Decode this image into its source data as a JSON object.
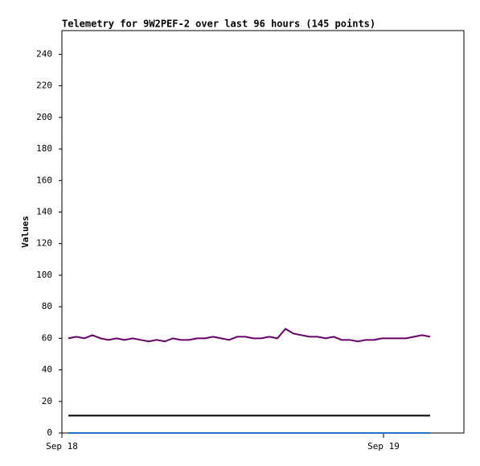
{
  "chart_data": {
    "type": "line",
    "title": "Telemetry for 9W2PEF-2 over last 96 hours (145 points)",
    "y_label": "Values",
    "x": [
      0.02,
      0.045,
      0.07,
      0.095,
      0.12,
      0.145,
      0.17,
      0.195,
      0.22,
      0.245,
      0.27,
      0.295,
      0.32,
      0.345,
      0.37,
      0.395,
      0.42,
      0.445,
      0.47,
      0.495,
      0.52,
      0.545,
      0.57,
      0.595,
      0.62,
      0.645,
      0.67,
      0.695,
      0.72,
      0.745,
      0.77,
      0.795,
      0.82,
      0.845,
      0.87,
      0.895,
      0.92,
      0.945,
      0.97,
      0.995,
      1.02,
      1.045,
      1.07,
      1.095,
      1.12,
      1.145
    ],
    "series": [
      {
        "color": "#660066",
        "values": [
          60,
          61,
          60,
          62,
          60,
          59,
          60,
          59,
          60,
          59,
          58,
          59,
          58,
          60,
          59,
          59,
          60,
          60,
          61,
          60,
          59,
          61,
          61,
          60,
          60,
          61,
          60,
          66,
          63,
          62,
          61,
          61,
          60,
          61,
          59,
          59,
          58,
          59,
          59,
          60,
          60,
          60,
          60,
          61,
          62,
          61
        ]
      },
      {
        "color": "#000000",
        "values": [
          11,
          11,
          11,
          11,
          11,
          11,
          11,
          11,
          11,
          11,
          11,
          11,
          11,
          11,
          11,
          11,
          11,
          11,
          11,
          11,
          11,
          11,
          11,
          11,
          11,
          11,
          11,
          11,
          11,
          11,
          11,
          11,
          11,
          11,
          11,
          11,
          11,
          11,
          11,
          11,
          11,
          11,
          11,
          11,
          11,
          11
        ]
      },
      {
        "color": "#1a75c4",
        "values": [
          0,
          0,
          0,
          0,
          0,
          0,
          0,
          0,
          0,
          0,
          0,
          0,
          0,
          0,
          0,
          0,
          0,
          0,
          0,
          0,
          0,
          0,
          0,
          0,
          0,
          0,
          0,
          0,
          0,
          0,
          0,
          0,
          0,
          0,
          0,
          0,
          0,
          0,
          0,
          0,
          0,
          0,
          0,
          0,
          0,
          0
        ]
      }
    ],
    "xlim": [
      0,
      1.25
    ],
    "xticks": [
      {
        "value": 0,
        "label": "Sep 18"
      },
      {
        "value": 1,
        "label": "Sep 19"
      }
    ],
    "ylim": [
      0,
      255
    ],
    "yticks": [
      0,
      20,
      40,
      60,
      80,
      100,
      120,
      140,
      160,
      180,
      200,
      220,
      240
    ],
    "grid": false
  }
}
